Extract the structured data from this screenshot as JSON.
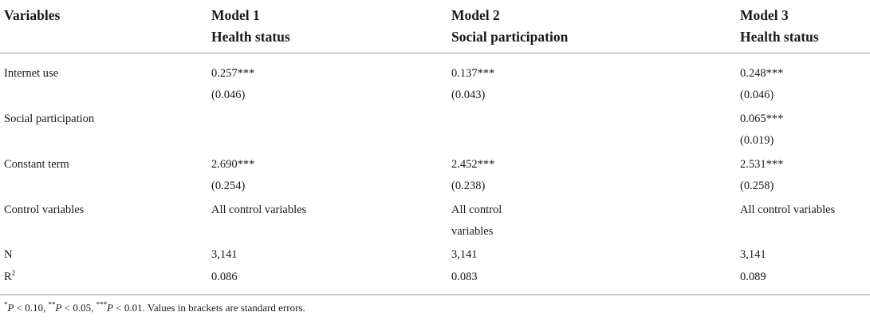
{
  "header": {
    "col0": "Variables",
    "col1": {
      "line1": "Model 1",
      "line2": "Health status"
    },
    "col2": {
      "line1": "Model 2",
      "line2": "Social participation"
    },
    "col3": {
      "line1": "Model 3",
      "line2": "Health status"
    }
  },
  "rows": [
    {
      "label": "Internet use",
      "m1": [
        "0.257***",
        "(0.046)"
      ],
      "m2": [
        "0.137***",
        "(0.043)"
      ],
      "m3": [
        "0.248***",
        "(0.046)"
      ]
    },
    {
      "label": "Social participation",
      "m1": [],
      "m2": [],
      "m3": [
        "0.065***",
        "(0.019)"
      ]
    },
    {
      "label": "Constant term",
      "m1": [
        "2.690***",
        "(0.254)"
      ],
      "m2": [
        "2.452***",
        "(0.238)"
      ],
      "m3": [
        "2.531***",
        "(0.258)"
      ]
    },
    {
      "label": "Control variables",
      "m1": [
        "All control variables"
      ],
      "m2": [
        "All control",
        "variables"
      ],
      "m3": [
        "All control variables"
      ]
    },
    {
      "label": "N",
      "m1": [
        "3,141"
      ],
      "m2": [
        "3,141"
      ],
      "m3": [
        "3,141"
      ]
    },
    {
      "label_base": "R",
      "label_sup": "2",
      "m1": [
        "0.086"
      ],
      "m2": [
        "0.083"
      ],
      "m3": [
        "0.089"
      ]
    }
  ],
  "footnote": {
    "p1_star": "*",
    "p1_var": "P",
    "p1_val": " < 0.10, ",
    "p2_star": "**",
    "p2_var": "P",
    "p2_val": " < 0.05, ",
    "p3_star": "***",
    "p3_var": "P",
    "p3_val": " < 0.01. ",
    "note": "Values in brackets are standard errors."
  }
}
